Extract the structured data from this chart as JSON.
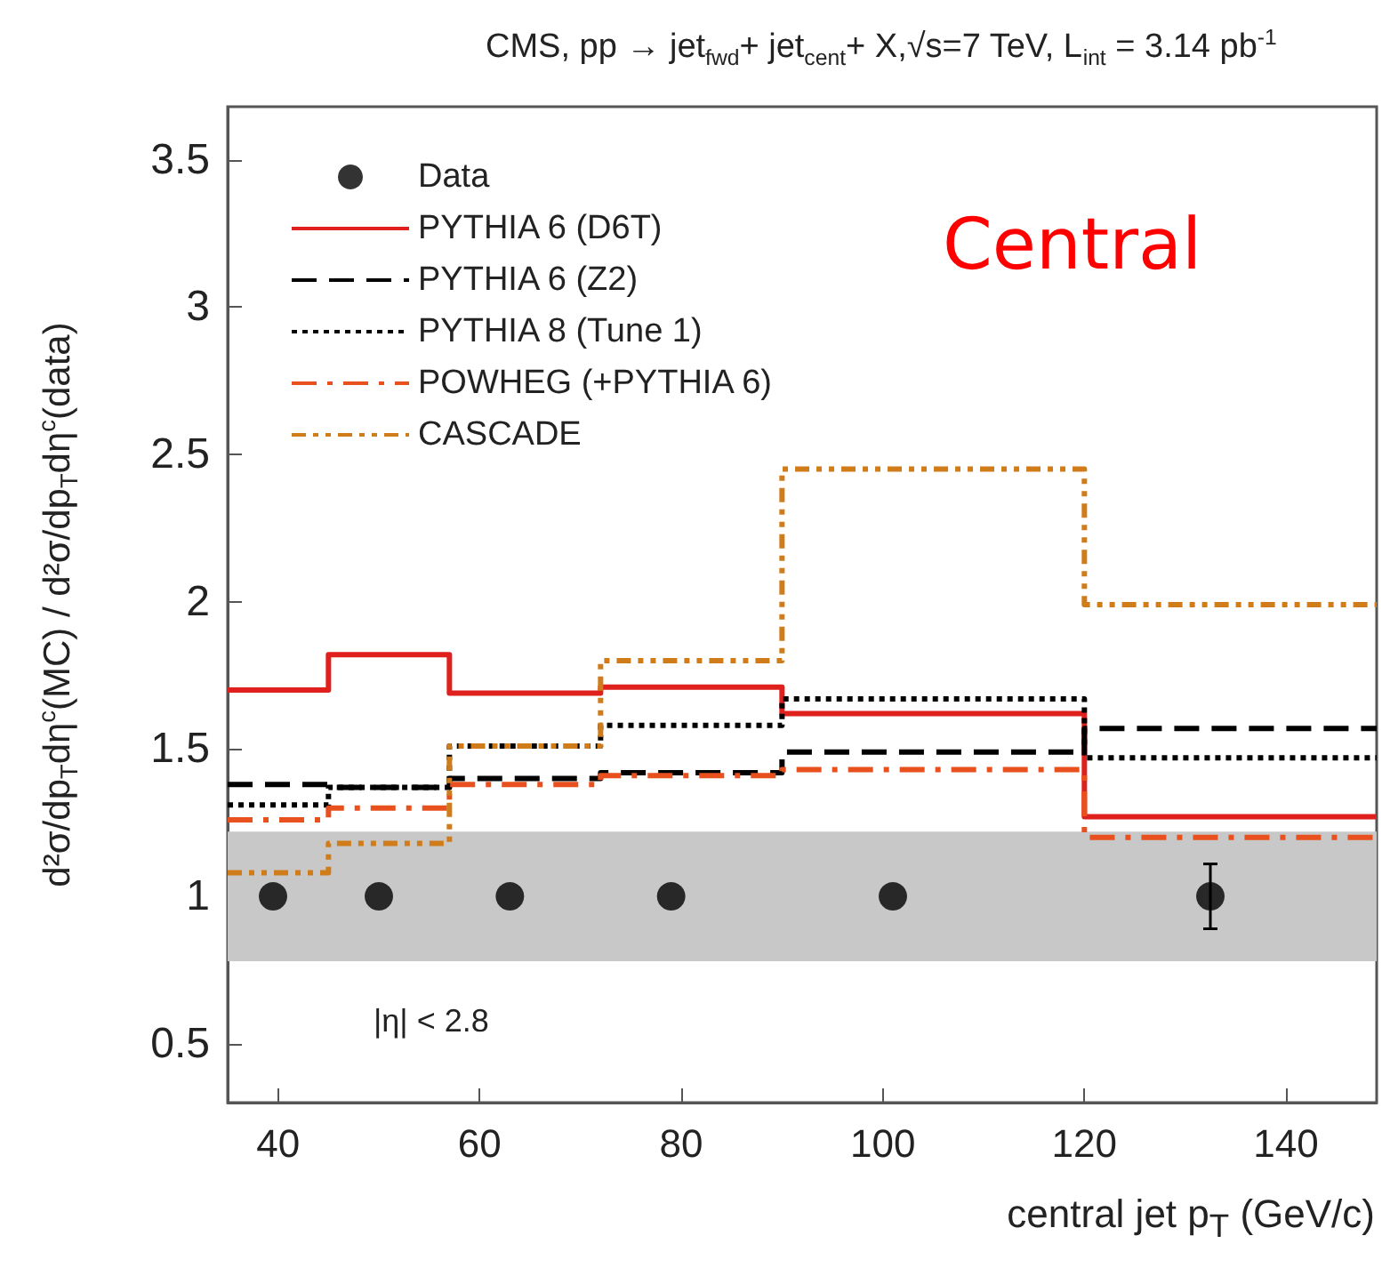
{
  "chart_data": {
    "type": "step",
    "title": "CMS, pp → jet$_{fwd}$+ jet$_{cent}$+ X,√s=7 TeV, L$_{int}$ = 3.14 pb$^{-1}$",
    "xlabel": "central jet p$_{T}$ (GeV/c)",
    "ylabel": "d²σ/dp$_{T}$dη$^{c}$(MC) / d²σ/dp$_{T}$dη$^{c}$(data)",
    "x": [
      35,
      45,
      57,
      72,
      90,
      120,
      149
    ],
    "series": [
      {
        "name": "Data",
        "type": "scatter",
        "color": "#000000",
        "marker": "circle",
        "x": [
          39.5,
          50,
          63,
          79,
          101,
          132.5
        ],
        "values": [
          1,
          1,
          1,
          1,
          1,
          1
        ],
        "errors": [
          null,
          null,
          null,
          null,
          null,
          0.11
        ]
      },
      {
        "name": "PYTHIA 6 (D6T)",
        "color": "#e0201c",
        "line_style": "solid",
        "values": [
          1.7,
          1.82,
          1.69,
          1.71,
          1.62,
          1.27,
          1.27
        ]
      },
      {
        "name": "PYTHIA 6 (Z2)",
        "color": "#000000",
        "line_style": "dashed",
        "values": [
          1.38,
          1.37,
          1.4,
          1.42,
          1.49,
          1.57,
          1.57
        ]
      },
      {
        "name": "PYTHIA 8 (Tune 1)",
        "color": "#000000",
        "line_style": "dotted",
        "values": [
          1.31,
          1.37,
          1.51,
          1.58,
          1.67,
          1.47,
          1.47
        ]
      },
      {
        "name": "POWHEG (+PYTHIA 6)",
        "color": "#e8501e",
        "line_style": "dashdot",
        "values": [
          1.26,
          1.3,
          1.38,
          1.41,
          1.43,
          1.2,
          1.2
        ]
      },
      {
        "name": "CASCADE",
        "color": "#d07c1a",
        "line_style": "dashdotdot",
        "values": [
          1.08,
          1.18,
          1.51,
          1.8,
          2.45,
          1.99,
          1.99
        ]
      }
    ],
    "bands": [
      {
        "axis": "y",
        "from": 0.78,
        "to": 1.22,
        "color": "#c8c8c8"
      }
    ],
    "annotations": [
      "Central",
      "|η| < 2.8"
    ],
    "xlim": [
      35,
      149
    ],
    "xticks": [
      40,
      60,
      80,
      100,
      120,
      140
    ],
    "ylim": [
      0.3,
      3.68
    ],
    "yticks": [
      0.5,
      1,
      1.5,
      2,
      2.5,
      3,
      3.5
    ],
    "legend": "top left",
    "grid": false
  }
}
